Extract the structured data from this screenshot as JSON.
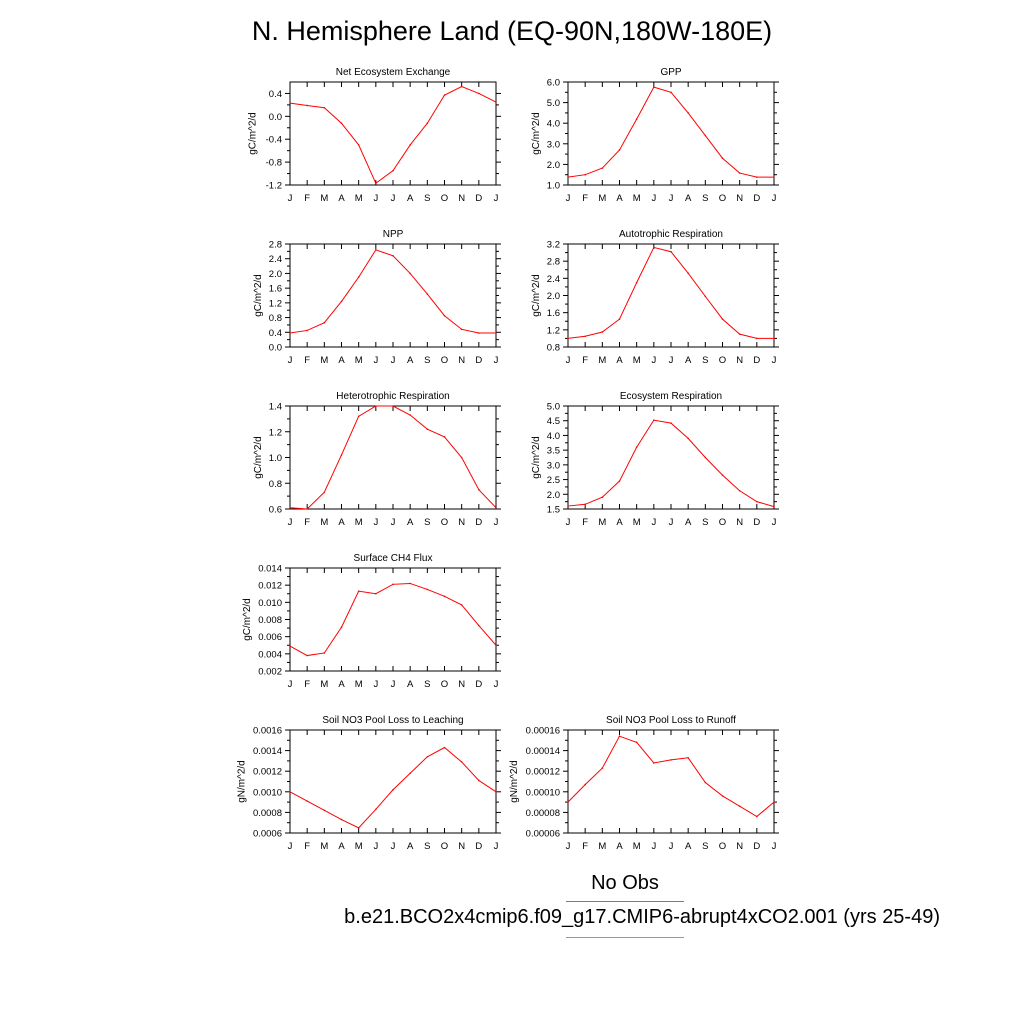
{
  "title": "N. Hemisphere Land (EQ-90N,180W-180E)",
  "legend": {
    "obs_label": "No Obs",
    "case_label": "b.e21.BCO2x4cmip6.f09_g17.CMIP6-abrupt4xCO2.001 (yrs 25-49)",
    "obs_color": "#6b6bff",
    "case_color": "#ff6b6b"
  },
  "months": [
    "J",
    "F",
    "M",
    "A",
    "M",
    "J",
    "J",
    "A",
    "S",
    "O",
    "N",
    "D",
    "J"
  ],
  "line_color": "#ff0000",
  "chart_data": [
    {
      "type": "line",
      "title": "Net Ecosystem Exchange",
      "ylabel": "gC/m^2/d",
      "xlabel": "",
      "ylim": [
        -1.2,
        0.6
      ],
      "yticks": [
        "0.4",
        "0.0",
        "-0.4",
        "-0.8",
        "-1.2"
      ],
      "ytick_values": [
        0.4,
        0.0,
        -0.4,
        -0.8,
        -1.2
      ],
      "categories": [
        "J",
        "F",
        "M",
        "A",
        "M",
        "J",
        "J",
        "A",
        "S",
        "O",
        "N",
        "D",
        "J"
      ],
      "values": [
        0.23,
        0.19,
        0.15,
        -0.12,
        -0.5,
        -1.17,
        -0.95,
        -0.5,
        -0.12,
        0.37,
        0.52,
        0.4,
        0.25
      ]
    },
    {
      "type": "line",
      "title": "GPP",
      "ylabel": "gC/m^2/d",
      "xlabel": "",
      "ylim": [
        1.0,
        6.0
      ],
      "yticks": [
        "6.0",
        "5.0",
        "4.0",
        "3.0",
        "2.0",
        "1.0"
      ],
      "ytick_values": [
        6.0,
        5.0,
        4.0,
        3.0,
        2.0,
        1.0
      ],
      "categories": [
        "J",
        "F",
        "M",
        "A",
        "M",
        "J",
        "J",
        "A",
        "S",
        "O",
        "N",
        "D",
        "J"
      ],
      "values": [
        1.38,
        1.5,
        1.82,
        2.7,
        4.2,
        5.75,
        5.5,
        4.5,
        3.4,
        2.3,
        1.58,
        1.38,
        1.38
      ]
    },
    {
      "type": "line",
      "title": "NPP",
      "ylabel": "gC/m^2/d",
      "xlabel": "",
      "ylim": [
        0.0,
        2.8
      ],
      "yticks": [
        "2.8",
        "2.4",
        "2.0",
        "1.6",
        "1.2",
        "0.8",
        "0.4",
        "0.0"
      ],
      "ytick_values": [
        2.8,
        2.4,
        2.0,
        1.6,
        1.2,
        0.8,
        0.4,
        0.0
      ],
      "categories": [
        "J",
        "F",
        "M",
        "A",
        "M",
        "J",
        "J",
        "A",
        "S",
        "O",
        "N",
        "D",
        "J"
      ],
      "values": [
        0.38,
        0.45,
        0.66,
        1.24,
        1.9,
        2.64,
        2.48,
        2.0,
        1.44,
        0.85,
        0.48,
        0.38,
        0.38
      ]
    },
    {
      "type": "line",
      "title": "Autotrophic Respiration",
      "ylabel": "gC/m^2/d",
      "xlabel": "",
      "ylim": [
        0.8,
        3.2
      ],
      "yticks": [
        "3.2",
        "2.8",
        "2.4",
        "2.0",
        "1.6",
        "1.2",
        "0.8"
      ],
      "ytick_values": [
        3.2,
        2.8,
        2.4,
        2.0,
        1.6,
        1.2,
        0.8
      ],
      "categories": [
        "J",
        "F",
        "M",
        "A",
        "M",
        "J",
        "J",
        "A",
        "S",
        "O",
        "N",
        "D",
        "J"
      ],
      "values": [
        1.0,
        1.05,
        1.15,
        1.45,
        2.3,
        3.12,
        3.02,
        2.52,
        1.98,
        1.45,
        1.1,
        1.0,
        1.0
      ]
    },
    {
      "type": "line",
      "title": "Heterotrophic Respiration",
      "ylabel": "gC/m^2/d",
      "xlabel": "",
      "ylim": [
        0.6,
        1.4
      ],
      "yticks": [
        "1.4",
        "1.2",
        "1.0",
        "0.8",
        "0.6"
      ],
      "ytick_values": [
        1.4,
        1.2,
        1.0,
        0.8,
        0.6
      ],
      "categories": [
        "J",
        "F",
        "M",
        "A",
        "M",
        "J",
        "J",
        "A",
        "S",
        "O",
        "N",
        "D",
        "J"
      ],
      "values": [
        0.61,
        0.6,
        0.73,
        1.02,
        1.32,
        1.4,
        1.4,
        1.33,
        1.22,
        1.16,
        1.0,
        0.75,
        0.61
      ]
    },
    {
      "type": "line",
      "title": "Ecosystem Respiration",
      "ylabel": "gC/m^2/d",
      "xlabel": "",
      "ylim": [
        1.5,
        5.0
      ],
      "yticks": [
        "5.0",
        "4.5",
        "4.0",
        "3.5",
        "3.0",
        "2.5",
        "2.0",
        "1.5"
      ],
      "ytick_values": [
        5.0,
        4.5,
        4.0,
        3.5,
        3.0,
        2.5,
        2.0,
        1.5
      ],
      "categories": [
        "J",
        "F",
        "M",
        "A",
        "M",
        "J",
        "J",
        "A",
        "S",
        "O",
        "N",
        "D",
        "J"
      ],
      "values": [
        1.6,
        1.66,
        1.9,
        2.45,
        3.6,
        4.52,
        4.42,
        3.9,
        3.25,
        2.65,
        2.12,
        1.75,
        1.58
      ]
    },
    {
      "type": "line",
      "title": "Surface CH4 Flux",
      "ylabel": "gC/m^2/d",
      "xlabel": "",
      "ylim": [
        0.002,
        0.014
      ],
      "yticks": [
        "0.014",
        "0.012",
        "0.010",
        "0.008",
        "0.006",
        "0.004",
        "0.002"
      ],
      "ytick_values": [
        0.014,
        0.012,
        0.01,
        0.008,
        0.006,
        0.004,
        0.002
      ],
      "categories": [
        "J",
        "F",
        "M",
        "A",
        "M",
        "J",
        "J",
        "A",
        "S",
        "O",
        "N",
        "D",
        "J"
      ],
      "values": [
        0.0049,
        0.0038,
        0.0041,
        0.0071,
        0.0113,
        0.011,
        0.0121,
        0.0122,
        0.0115,
        0.0107,
        0.0097,
        0.0073,
        0.005
      ]
    },
    {
      "type": "line",
      "title": "Soil NO3 Pool Loss to Leaching",
      "ylabel": "gN/m^2/d",
      "xlabel": "",
      "ylim": [
        0.0006,
        0.0016
      ],
      "yticks": [
        "0.0016",
        "0.0014",
        "0.0012",
        "0.0010",
        "0.0008",
        "0.0006"
      ],
      "ytick_values": [
        0.0016,
        0.0014,
        0.0012,
        0.001,
        0.0008,
        0.0006
      ],
      "categories": [
        "J",
        "F",
        "M",
        "A",
        "M",
        "J",
        "J",
        "A",
        "S",
        "O",
        "N",
        "D",
        "J"
      ],
      "values": [
        0.001,
        0.00091,
        0.00082,
        0.00073,
        0.00065,
        0.00083,
        0.00102,
        0.00118,
        0.00134,
        0.00143,
        0.00129,
        0.00111,
        0.001
      ]
    },
    {
      "type": "line",
      "title": "Soil NO3 Pool Loss to Runoff",
      "ylabel": "gN/m^2/d",
      "xlabel": "",
      "ylim": [
        6e-05,
        0.00016
      ],
      "yticks": [
        "0.00016",
        "0.00014",
        "0.00012",
        "0.00010",
        "0.00008",
        "0.00006"
      ],
      "ytick_values": [
        0.00016,
        0.00014,
        0.00012,
        0.0001,
        8e-05,
        6e-05
      ],
      "categories": [
        "J",
        "F",
        "M",
        "A",
        "M",
        "J",
        "J",
        "A",
        "S",
        "O",
        "N",
        "D",
        "J"
      ],
      "values": [
        9e-05,
        0.000107,
        0.000123,
        0.000154,
        0.000148,
        0.000128,
        0.000131,
        0.000133,
        0.000109,
        9.6e-05,
        8.6e-05,
        7.6e-05,
        9e-05
      ]
    }
  ]
}
